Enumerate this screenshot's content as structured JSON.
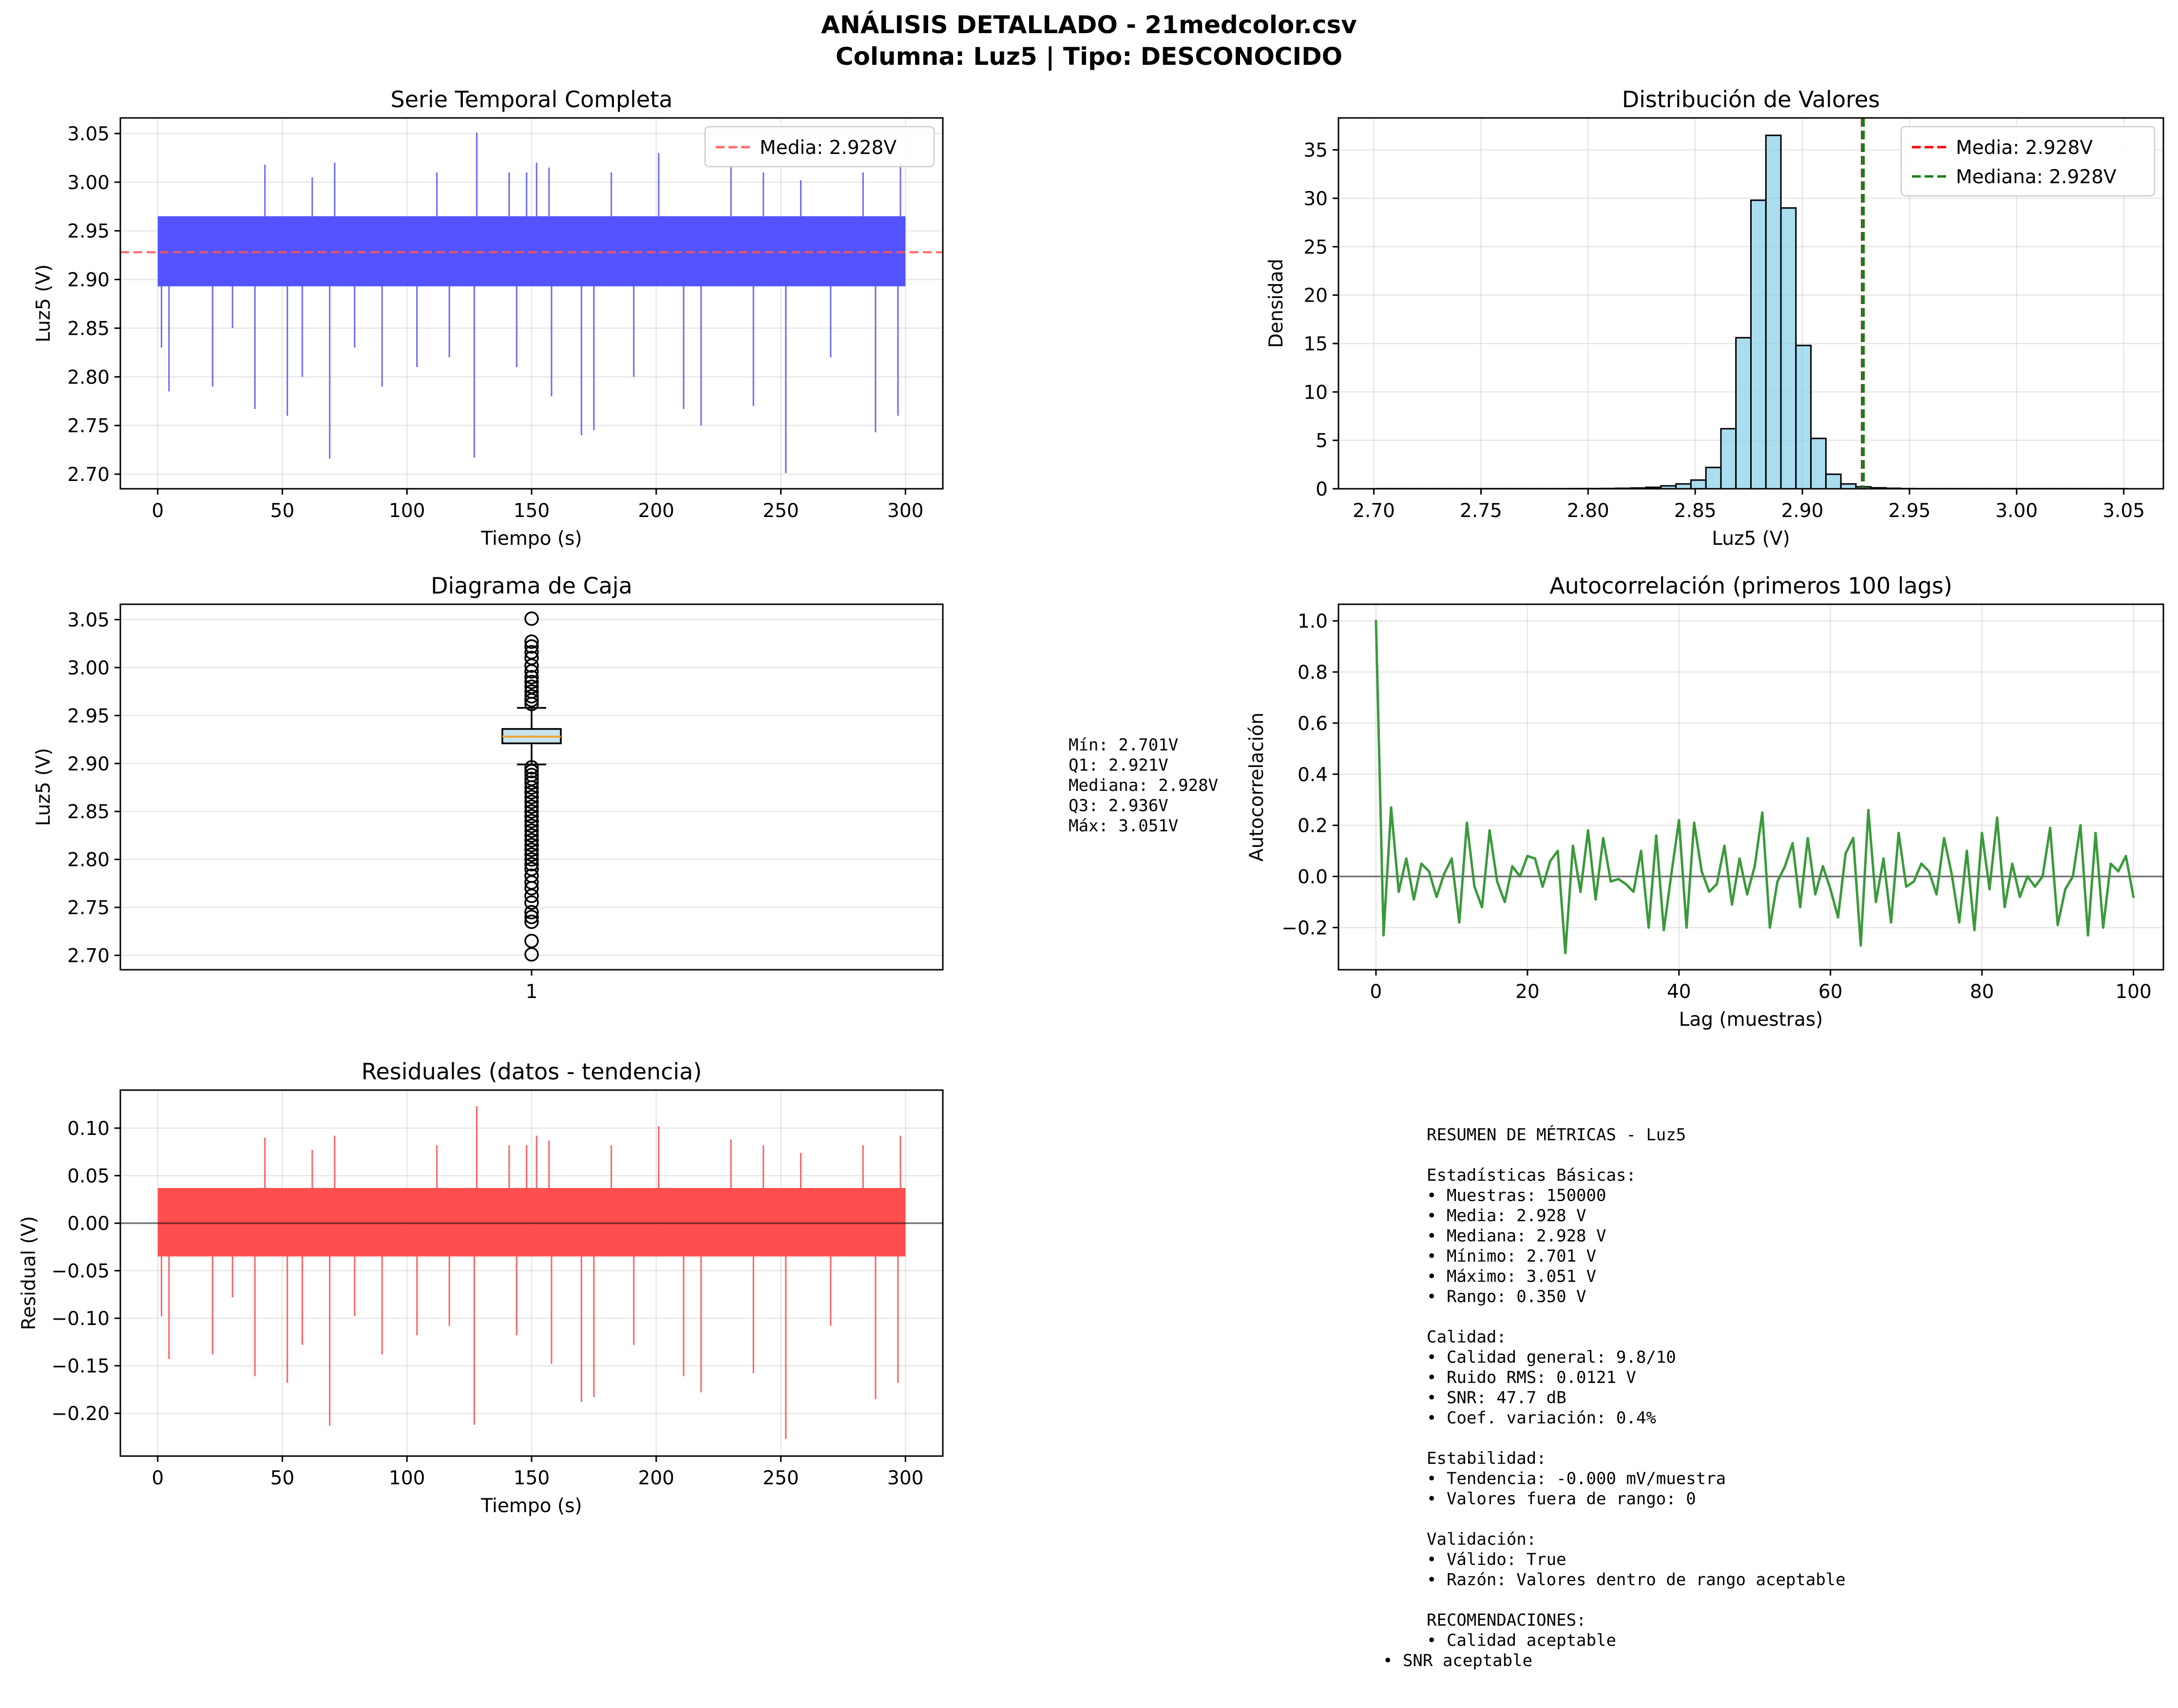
{
  "figure": {
    "title_line1": "ANÁLISIS DETALLADO - 21medcolor.csv",
    "title_line2": "Columna: Luz5 | Tipo: DESCONOCIDO"
  },
  "colors": {
    "series_blue": "#4444ff",
    "mean_red": "#ff5555",
    "hist_fill": "#87ceeb",
    "median_green": "#1a7f1a",
    "acf_green": "#3a9a3a",
    "residual_red": "#ff4444"
  },
  "chart_data": [
    {
      "id": "serie",
      "type": "line",
      "title": "Serie Temporal Completa",
      "xlabel": "Tiempo (s)",
      "ylabel": "Luz5 (V)",
      "xlim": [
        -15,
        315
      ],
      "ylim": [
        2.685,
        3.066
      ],
      "xticks": [
        0,
        50,
        100,
        150,
        200,
        250,
        300
      ],
      "yticks": [
        2.7,
        2.75,
        2.8,
        2.85,
        2.9,
        2.95,
        3.0,
        3.05
      ],
      "ytick_labels": [
        "2.70",
        "2.75",
        "2.80",
        "2.85",
        "2.90",
        "2.95",
        "3.00",
        "3.05"
      ],
      "grid": true,
      "legend": "top-right",
      "legend_entries": [
        "Media: 2.928V"
      ],
      "band": {
        "x": [
          0,
          300
        ],
        "y": [
          2.893,
          2.965
        ]
      },
      "mean": 2.928,
      "spikes": [
        {
          "x": 1.5,
          "y": 2.83
        },
        {
          "x": 4.5,
          "y": 2.785
        },
        {
          "x": 22,
          "y": 2.79
        },
        {
          "x": 30,
          "y": 2.85
        },
        {
          "x": 39,
          "y": 2.767
        },
        {
          "x": 52,
          "y": 2.76
        },
        {
          "x": 58,
          "y": 2.8
        },
        {
          "x": 69,
          "y": 2.716
        },
        {
          "x": 79,
          "y": 2.83
        },
        {
          "x": 90,
          "y": 2.79
        },
        {
          "x": 104,
          "y": 2.81
        },
        {
          "x": 117,
          "y": 2.82
        },
        {
          "x": 127,
          "y": 2.717
        },
        {
          "x": 144,
          "y": 2.81
        },
        {
          "x": 158,
          "y": 2.78
        },
        {
          "x": 170,
          "y": 2.74
        },
        {
          "x": 175,
          "y": 2.745
        },
        {
          "x": 191,
          "y": 2.8
        },
        {
          "x": 211,
          "y": 2.767
        },
        {
          "x": 218,
          "y": 2.75
        },
        {
          "x": 239,
          "y": 2.77
        },
        {
          "x": 252,
          "y": 2.701
        },
        {
          "x": 270,
          "y": 2.82
        },
        {
          "x": 288,
          "y": 2.743
        },
        {
          "x": 297,
          "y": 2.76
        },
        {
          "x": 43,
          "y": 3.018
        },
        {
          "x": 62,
          "y": 3.005
        },
        {
          "x": 71,
          "y": 3.02
        },
        {
          "x": 112,
          "y": 3.01
        },
        {
          "x": 128,
          "y": 3.051
        },
        {
          "x": 141,
          "y": 3.01
        },
        {
          "x": 148,
          "y": 3.01
        },
        {
          "x": 152,
          "y": 3.02
        },
        {
          "x": 157,
          "y": 3.015
        },
        {
          "x": 182,
          "y": 3.01
        },
        {
          "x": 201,
          "y": 3.03
        },
        {
          "x": 230,
          "y": 3.016
        },
        {
          "x": 243,
          "y": 3.01
        },
        {
          "x": 258,
          "y": 3.002
        },
        {
          "x": 283,
          "y": 3.01
        },
        {
          "x": 298,
          "y": 3.02
        }
      ]
    },
    {
      "id": "hist",
      "type": "bar",
      "title": "Distribución de Valores",
      "xlabel": "Luz5 (V)",
      "ylabel": "Densidad",
      "xlim": [
        2.6835,
        3.0685
      ],
      "ylim": [
        0,
        38.3
      ],
      "xticks": [
        2.7,
        2.75,
        2.8,
        2.85,
        2.9,
        2.95,
        3.0,
        3.05
      ],
      "xtick_labels": [
        "2.70",
        "2.75",
        "2.80",
        "2.85",
        "2.90",
        "2.95",
        "3.00",
        "3.05"
      ],
      "yticks": [
        0,
        5,
        10,
        15,
        20,
        25,
        30,
        35
      ],
      "grid": true,
      "legend": "top-right",
      "legend_entries": [
        "Media: 2.928V",
        "Mediana: 2.928V"
      ],
      "bin_start": 2.701,
      "bin_width": 0.007,
      "values": [
        0.01,
        0.01,
        0.01,
        0.01,
        0.01,
        0.01,
        0.01,
        0.01,
        0.01,
        0.01,
        0.01,
        0.01,
        0.01,
        0.02,
        0.02,
        0.03,
        0.05,
        0.08,
        0.15,
        0.3,
        0.5,
        0.9,
        2.2,
        6.2,
        15.6,
        29.8,
        36.5,
        29.0,
        14.8,
        5.2,
        1.5,
        0.5,
        0.2,
        0.1,
        0.05,
        0.02,
        0.01,
        0.01,
        0.01,
        0.01,
        0.01,
        0.01,
        0.01,
        0.01,
        0.01,
        0.01,
        0.01,
        0.01,
        0.01,
        0.01
      ],
      "mean": 2.928,
      "median": 2.928
    },
    {
      "id": "box",
      "type": "box",
      "title": "Diagrama de Caja",
      "ylabel": "Luz5 (V)",
      "xtick_labels": [
        "1"
      ],
      "ylim": [
        2.685,
        3.066
      ],
      "yticks": [
        2.7,
        2.75,
        2.8,
        2.85,
        2.9,
        2.95,
        3.0,
        3.05
      ],
      "ytick_labels": [
        "2.70",
        "2.75",
        "2.80",
        "2.85",
        "2.90",
        "2.95",
        "3.00",
        "3.05"
      ],
      "grid": true,
      "whisker_low": 2.899,
      "q1": 2.921,
      "median": 2.928,
      "q3": 2.936,
      "whisker_high": 2.958,
      "outliers": [
        2.701,
        2.715,
        2.735,
        2.74,
        2.745,
        2.755,
        2.762,
        2.77,
        2.776,
        2.783,
        2.79,
        2.795,
        2.8,
        2.805,
        2.81,
        2.815,
        2.82,
        2.825,
        2.83,
        2.835,
        2.84,
        2.845,
        2.85,
        2.855,
        2.86,
        2.865,
        2.87,
        2.875,
        2.88,
        2.884,
        2.888,
        2.892,
        2.896,
        2.962,
        2.966,
        2.97,
        2.975,
        2.98,
        2.985,
        2.99,
        2.996,
        3.002,
        3.01,
        3.016,
        3.022,
        3.027,
        3.051
      ]
    },
    {
      "id": "acf",
      "type": "line",
      "title": "Autocorrelación (primeros 100 lags)",
      "xlabel": "Lag (muestras)",
      "ylabel": "Autocorrelación",
      "xlim": [
        -4.95,
        103.95
      ],
      "ylim": [
        -0.365,
        1.065
      ],
      "xticks": [
        0,
        20,
        40,
        60,
        80,
        100
      ],
      "yticks": [
        -0.2,
        0.0,
        0.2,
        0.4,
        0.6,
        0.8,
        1.0
      ],
      "ytick_labels": [
        "−0.2",
        "0.0",
        "0.2",
        "0.4",
        "0.6",
        "0.8",
        "1.0"
      ],
      "grid": true,
      "values": [
        1.0,
        -0.23,
        0.27,
        -0.06,
        0.07,
        -0.09,
        0.05,
        0.02,
        -0.08,
        0.01,
        0.07,
        -0.18,
        0.21,
        -0.04,
        -0.12,
        0.18,
        -0.02,
        -0.1,
        0.04,
        0.0,
        0.08,
        0.07,
        -0.04,
        0.06,
        0.1,
        -0.3,
        0.12,
        -0.06,
        0.18,
        -0.09,
        0.15,
        -0.02,
        -0.01,
        -0.03,
        -0.06,
        0.1,
        -0.2,
        0.16,
        -0.21,
        0.01,
        0.22,
        -0.2,
        0.21,
        0.02,
        -0.06,
        -0.03,
        0.12,
        -0.11,
        0.07,
        -0.07,
        0.04,
        0.25,
        -0.2,
        -0.02,
        0.04,
        0.13,
        -0.12,
        0.15,
        -0.07,
        0.04,
        -0.05,
        -0.16,
        0.09,
        0.15,
        -0.27,
        0.26,
        -0.1,
        0.07,
        -0.18,
        0.17,
        -0.04,
        -0.02,
        0.05,
        0.02,
        -0.07,
        0.15,
        0.01,
        -0.18,
        0.1,
        -0.21,
        0.17,
        -0.05,
        0.23,
        -0.12,
        0.05,
        -0.08,
        0.0,
        -0.04,
        0.0,
        0.19,
        -0.19,
        -0.05,
        0.0,
        0.2,
        -0.23,
        0.17,
        -0.2,
        0.05,
        0.02,
        0.08,
        -0.08
      ],
      "baseline": 0.0
    },
    {
      "id": "resid",
      "type": "line",
      "title": "Residuales (datos - tendencia)",
      "xlabel": "Tiempo (s)",
      "ylabel": "Residual (V)",
      "xlim": [
        -15,
        315
      ],
      "ylim": [
        -0.245,
        0.14
      ],
      "xticks": [
        0,
        50,
        100,
        150,
        200,
        250,
        300
      ],
      "yticks": [
        -0.2,
        -0.15,
        -0.1,
        -0.05,
        0.0,
        0.05,
        0.1
      ],
      "ytick_labels": [
        "−0.20",
        "−0.15",
        "−0.10",
        "−0.05",
        "0.00",
        "0.05",
        "0.10"
      ],
      "grid": true,
      "band": {
        "x": [
          0,
          300
        ],
        "y": [
          -0.035,
          0.037
        ]
      },
      "baseline": 0.0,
      "spikes": [
        {
          "x": 1.5,
          "y": -0.098
        },
        {
          "x": 4.5,
          "y": -0.143
        },
        {
          "x": 22,
          "y": -0.138
        },
        {
          "x": 30,
          "y": -0.078
        },
        {
          "x": 39,
          "y": -0.161
        },
        {
          "x": 52,
          "y": -0.168
        },
        {
          "x": 58,
          "y": -0.128
        },
        {
          "x": 69,
          "y": -0.213
        },
        {
          "x": 79,
          "y": -0.098
        },
        {
          "x": 90,
          "y": -0.138
        },
        {
          "x": 104,
          "y": -0.118
        },
        {
          "x": 117,
          "y": -0.108
        },
        {
          "x": 127,
          "y": -0.212
        },
        {
          "x": 144,
          "y": -0.118
        },
        {
          "x": 158,
          "y": -0.148
        },
        {
          "x": 170,
          "y": -0.188
        },
        {
          "x": 175,
          "y": -0.183
        },
        {
          "x": 191,
          "y": -0.128
        },
        {
          "x": 211,
          "y": -0.161
        },
        {
          "x": 218,
          "y": -0.178
        },
        {
          "x": 239,
          "y": -0.158
        },
        {
          "x": 252,
          "y": -0.227
        },
        {
          "x": 270,
          "y": -0.108
        },
        {
          "x": 288,
          "y": -0.185
        },
        {
          "x": 297,
          "y": -0.168
        },
        {
          "x": 43,
          "y": 0.09
        },
        {
          "x": 62,
          "y": 0.077
        },
        {
          "x": 71,
          "y": 0.092
        },
        {
          "x": 112,
          "y": 0.082
        },
        {
          "x": 128,
          "y": 0.123
        },
        {
          "x": 141,
          "y": 0.082
        },
        {
          "x": 148,
          "y": 0.082
        },
        {
          "x": 152,
          "y": 0.092
        },
        {
          "x": 157,
          "y": 0.087
        },
        {
          "x": 182,
          "y": 0.082
        },
        {
          "x": 201,
          "y": 0.102
        },
        {
          "x": 230,
          "y": 0.088
        },
        {
          "x": 243,
          "y": 0.082
        },
        {
          "x": 258,
          "y": 0.074
        },
        {
          "x": 283,
          "y": 0.082
        },
        {
          "x": 298,
          "y": 0.092
        }
      ]
    }
  ],
  "box_stats_lines": [
    "Mín: 2.701V",
    "Q1: 2.921V",
    "Mediana: 2.928V",
    "Q3: 2.936V",
    "Máx: 3.051V"
  ],
  "summary_lines": [
    "RESUMEN DE MÉTRICAS - Luz5",
    "",
    "Estadísticas Básicas:",
    "• Muestras: 150000",
    "• Media: 2.928 V",
    "• Mediana: 2.928 V",
    "• Mínimo: 2.701 V",
    "• Máximo: 3.051 V",
    "• Rango: 0.350 V",
    "",
    "Calidad:",
    "• Calidad general: 9.8/10",
    "• Ruido RMS: 0.0121 V",
    "• SNR: 47.7 dB",
    "• Coef. variación: 0.4%",
    "",
    "Estabilidad:",
    "• Tendencia: -0.000 mV/muestra",
    "• Valores fuera de rango: 0",
    "",
    "Validación:",
    "• Válido: True",
    "• Razón: Valores dentro de rango aceptable",
    "",
    "RECOMENDACIONES:",
    "• Calidad aceptable",
    "• SNR aceptable"
  ]
}
